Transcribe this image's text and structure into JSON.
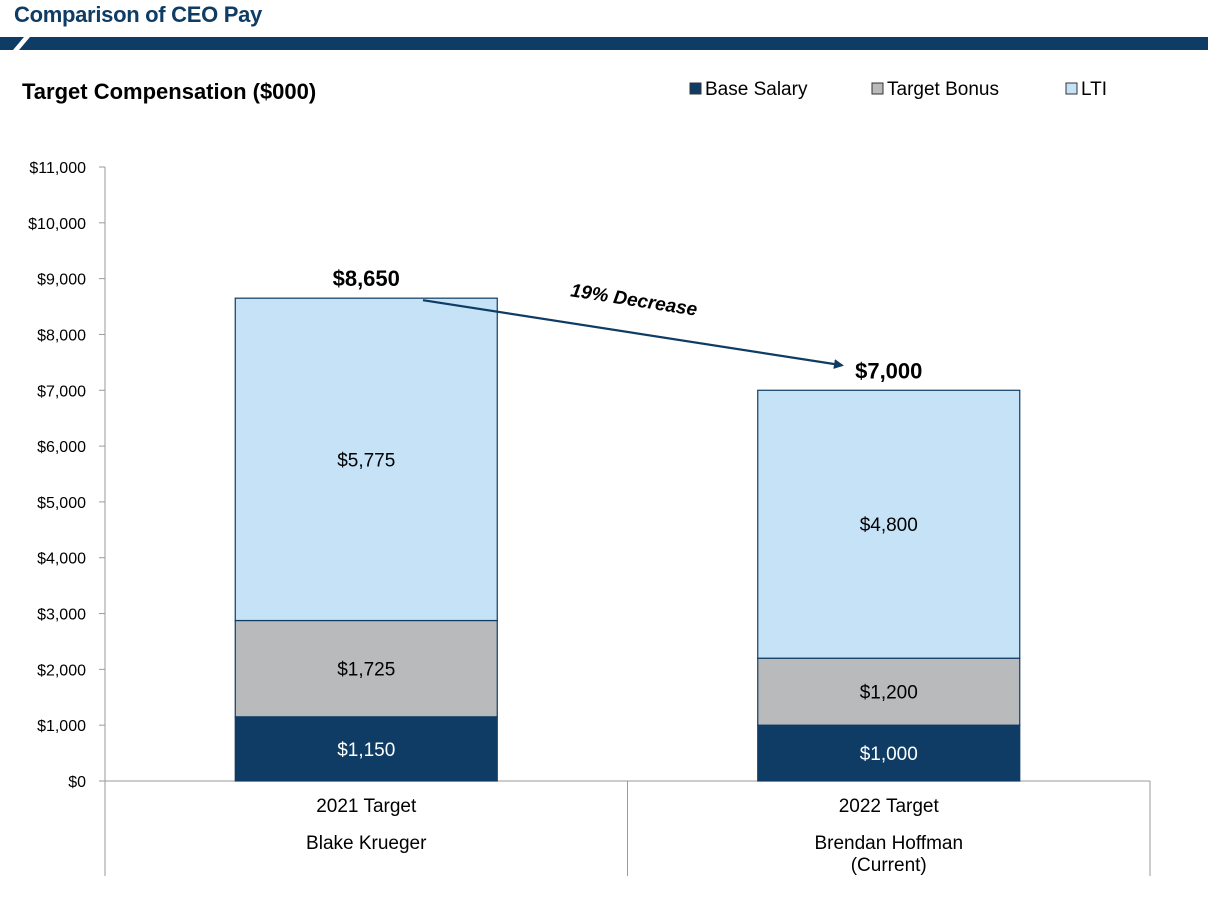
{
  "header": {
    "title": "Comparison of CEO Pay"
  },
  "colors": {
    "title": "#0f3c64",
    "bar_navy": "#0f3c64",
    "bar_green": "#2e8b3c",
    "base_salary": "#0f3c64",
    "target_bonus": "#b9babc",
    "lti": "#c5e2f7",
    "outline": "#0f3c64",
    "axis": "#9a9a9a"
  },
  "chart_data": {
    "type": "bar",
    "stacked": true,
    "title": "Target Compensation ($000)",
    "ylim": [
      0,
      11000
    ],
    "yticks": [
      0,
      1000,
      2000,
      3000,
      4000,
      5000,
      6000,
      7000,
      8000,
      9000,
      10000,
      11000
    ],
    "ytick_labels": [
      "$0",
      "$1,000",
      "$2,000",
      "$3,000",
      "$4,000",
      "$5,000",
      "$6,000",
      "$7,000",
      "$8,000",
      "$9,000",
      "$10,000",
      "$11,000"
    ],
    "categories": [
      "2021 Target",
      "2022 Target"
    ],
    "category_sublabels": [
      [
        "Blake Krueger"
      ],
      [
        "Brendan Hoffman",
        "(Current)"
      ]
    ],
    "series": [
      {
        "name": "Base Salary",
        "values": [
          1150,
          1000
        ],
        "labels": [
          "$1,150",
          "$1,000"
        ]
      },
      {
        "name": "Target Bonus",
        "values": [
          1725,
          1200
        ],
        "labels": [
          "$1,725",
          "$1,200"
        ]
      },
      {
        "name": "LTI",
        "values": [
          5775,
          4800
        ],
        "labels": [
          "$5,775",
          "$4,800"
        ]
      }
    ],
    "totals": [
      8650,
      7000
    ],
    "total_labels": [
      "$8,650",
      "$7,000"
    ],
    "legend": [
      "Base Salary",
      "Target Bonus",
      "LTI"
    ],
    "legend_position": "top-right",
    "annotation": "19% Decrease",
    "grid": false
  }
}
